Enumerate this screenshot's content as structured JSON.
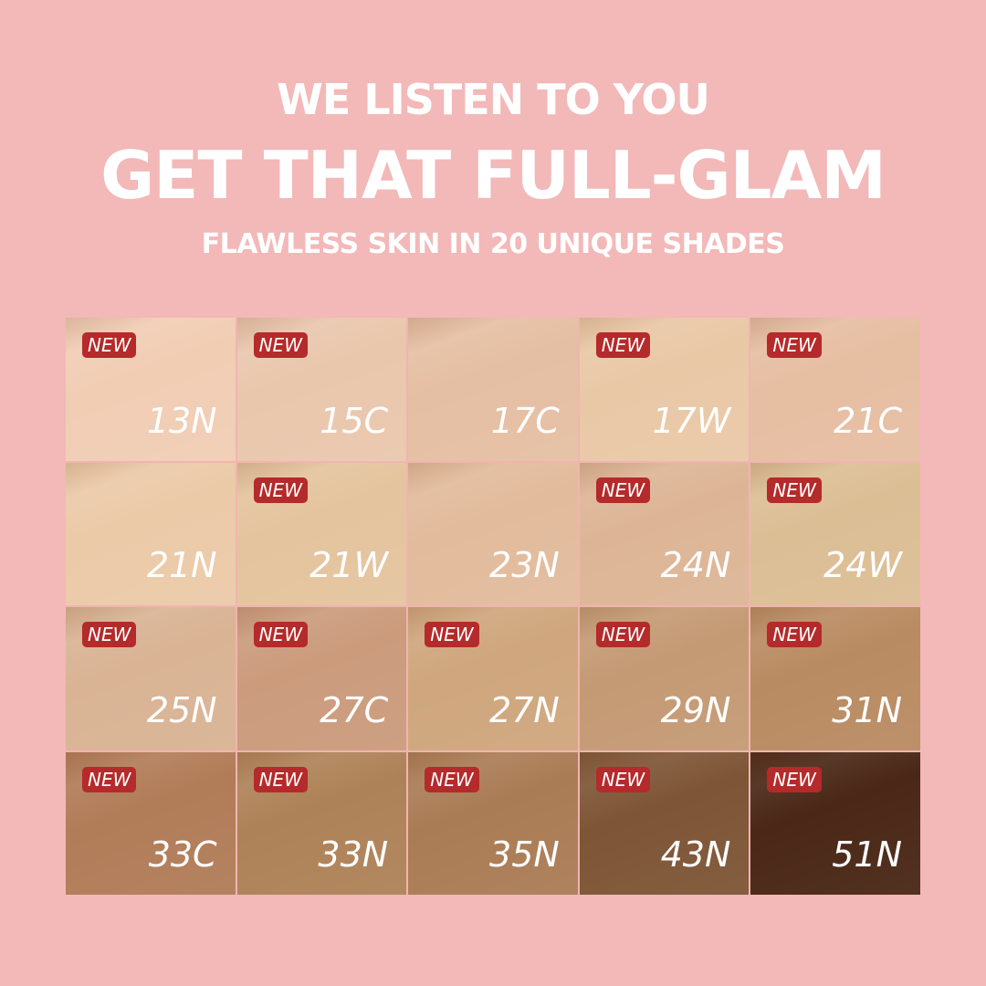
{
  "headline": {
    "line1": "WE LISTEN TO YOU",
    "line2": "GET THAT FULL-GLAM",
    "line3": "FLAWLESS SKIN IN 20 UNIQUE SHADES"
  },
  "badge_label": "NEW",
  "colors": {
    "background": "#f3b8b8",
    "badge": "#b52a2a"
  },
  "shades": [
    {
      "code": "13N",
      "new": true,
      "color": "#f1cdb4"
    },
    {
      "code": "15C",
      "new": true,
      "color": "#e9c7ad"
    },
    {
      "code": "17C",
      "new": false,
      "color": "#e5bfa3"
    },
    {
      "code": "17W",
      "new": true,
      "color": "#e9c8a6"
    },
    {
      "code": "21C",
      "new": true,
      "color": "#e6bea2"
    },
    {
      "code": "21N",
      "new": false,
      "color": "#ebcaa8"
    },
    {
      "code": "21W",
      "new": true,
      "color": "#e4c49e"
    },
    {
      "code": "23N",
      "new": false,
      "color": "#e2bb9c"
    },
    {
      "code": "24N",
      "new": true,
      "color": "#ddb596"
    },
    {
      "code": "24W",
      "new": true,
      "color": "#dcbe95"
    },
    {
      "code": "25N",
      "new": true,
      "color": "#d9b394"
    },
    {
      "code": "27C",
      "new": true,
      "color": "#cb9b7c"
    },
    {
      "code": "27N",
      "new": true,
      "color": "#cfa67d"
    },
    {
      "code": "29N",
      "new": true,
      "color": "#c49a74"
    },
    {
      "code": "31N",
      "new": true,
      "color": "#b98b62"
    },
    {
      "code": "33C",
      "new": true,
      "color": "#b17c58"
    },
    {
      "code": "33N",
      "new": true,
      "color": "#ae8258"
    },
    {
      "code": "35N",
      "new": true,
      "color": "#aa7c55"
    },
    {
      "code": "43N",
      "new": true,
      "color": "#7e5536"
    },
    {
      "code": "51N",
      "new": true,
      "color": "#4a2716"
    }
  ]
}
